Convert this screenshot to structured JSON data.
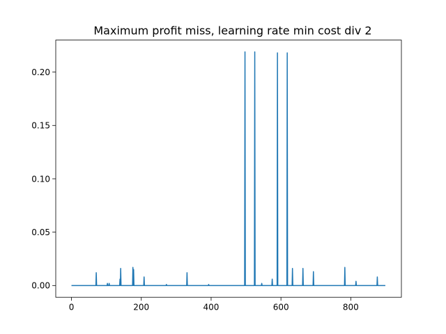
{
  "chart_data": {
    "type": "line",
    "title": "Maximum profit miss, learning rate min cost div 2",
    "xlabel": "",
    "ylabel": "",
    "xlim": [
      -45,
      945
    ],
    "ylim": [
      -0.011,
      0.23
    ],
    "x_ticks": [
      0,
      200,
      400,
      600,
      800
    ],
    "y_ticks": [
      0.0,
      0.05,
      0.1,
      0.15,
      0.2
    ],
    "x_tick_labels": [
      "0",
      "200",
      "400",
      "600",
      "800"
    ],
    "y_tick_labels": [
      "0.00",
      "0.05",
      "0.10",
      "0.15",
      "0.20"
    ],
    "grid": false,
    "legend": "none",
    "series": [
      {
        "color": "#1f77b4",
        "baseline": 0.0,
        "x_range": [
          0,
          899
        ],
        "spikes": [
          {
            "x": 71,
            "y": 0.012
          },
          {
            "x": 103,
            "y": 0.002
          },
          {
            "x": 108,
            "y": 0.002
          },
          {
            "x": 139,
            "y": 0.006
          },
          {
            "x": 141,
            "y": 0.016
          },
          {
            "x": 176,
            "y": 0.017
          },
          {
            "x": 178,
            "y": 0.015
          },
          {
            "x": 208,
            "y": 0.008
          },
          {
            "x": 272,
            "y": 0.001
          },
          {
            "x": 331,
            "y": 0.012
          },
          {
            "x": 393,
            "y": 0.001
          },
          {
            "x": 497,
            "y": 0.219
          },
          {
            "x": 525,
            "y": 0.219
          },
          {
            "x": 545,
            "y": 0.002
          },
          {
            "x": 575,
            "y": 0.006
          },
          {
            "x": 590,
            "y": 0.218
          },
          {
            "x": 618,
            "y": 0.218
          },
          {
            "x": 633,
            "y": 0.016
          },
          {
            "x": 663,
            "y": 0.016
          },
          {
            "x": 693,
            "y": 0.013
          },
          {
            "x": 783,
            "y": 0.017
          },
          {
            "x": 815,
            "y": 0.004
          },
          {
            "x": 876,
            "y": 0.008
          }
        ]
      }
    ]
  }
}
